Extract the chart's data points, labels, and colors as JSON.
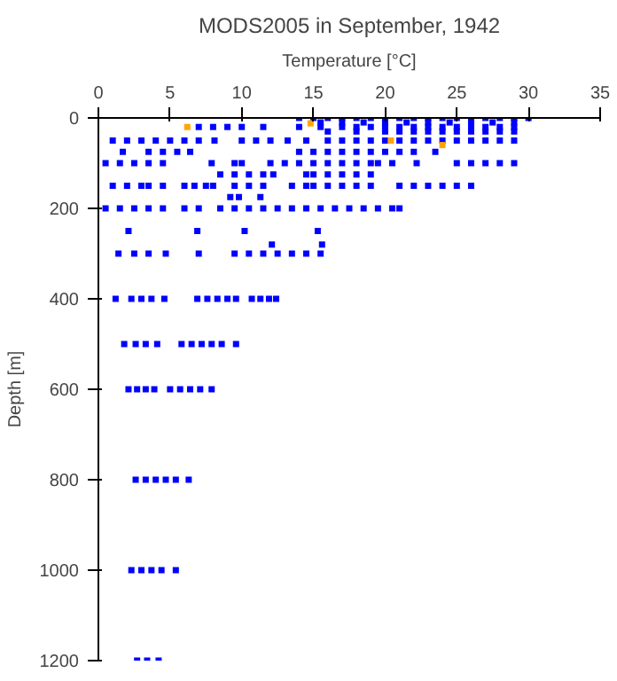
{
  "chart_data": {
    "type": "scatter",
    "title": "MODS2005 in September, 1942",
    "xlabel": "Temperature [°C]",
    "ylabel": "Depth [m]",
    "xlim": [
      0,
      35
    ],
    "xticks": [
      0,
      5,
      10,
      15,
      20,
      25,
      30,
      35
    ],
    "ylim": [
      1200,
      0
    ],
    "yticks": [
      0,
      200,
      400,
      600,
      800,
      1000,
      1200
    ],
    "grid": false,
    "marker": "square",
    "series": [
      {
        "color": "#0000ff",
        "x": [
          14,
          15,
          16,
          17,
          18,
          19,
          20,
          21,
          22,
          23,
          24,
          25,
          26,
          27,
          28,
          29,
          30,
          15.5,
          17,
          18.5,
          20,
          21.5,
          23,
          24.5,
          26,
          27.5,
          29,
          7,
          8,
          9,
          10,
          11.5,
          14,
          15.5,
          17,
          18,
          19,
          20,
          21,
          22,
          23,
          24,
          25,
          26,
          27,
          28,
          29,
          16,
          18,
          20,
          21,
          22,
          23,
          24,
          25,
          26,
          27,
          28,
          29,
          1,
          2,
          3,
          4,
          5,
          6,
          7,
          8.1,
          10,
          11,
          12,
          13.2,
          14.5,
          16,
          17,
          18,
          19,
          20,
          21,
          22,
          23,
          24,
          25,
          26,
          27,
          28,
          29,
          1.7,
          3.5,
          4.5,
          5.5,
          6.4,
          14,
          15,
          16,
          17,
          18,
          19,
          20,
          21,
          22,
          23.5,
          0.5,
          1.5,
          2.5,
          3.5,
          4.5,
          7.9,
          9.5,
          10,
          12,
          13,
          14,
          15,
          16,
          17,
          18,
          19,
          19.5,
          20.5,
          22.2,
          25,
          26,
          27,
          28,
          29,
          8.5,
          9.5,
          10.5,
          11.5,
          12.2,
          14.5,
          15,
          16,
          17,
          18,
          19,
          1,
          2,
          3,
          3.5,
          4.5,
          6,
          6.7,
          7.5,
          8,
          9.5,
          10.5,
          11.5,
          13.5,
          14.5,
          15,
          16,
          17,
          18,
          19,
          21,
          22,
          23,
          24,
          25,
          26,
          9.2,
          9.8,
          11.3,
          0.5,
          1.5,
          2.5,
          3.5,
          4.5,
          6,
          7,
          8.5,
          9.5,
          10.5,
          11.5,
          12.5,
          13.5,
          14.5,
          15.5,
          16.5,
          17.5,
          18.5,
          19.5,
          20.5,
          21,
          2.1,
          6.9,
          10.2,
          15.3,
          12.1,
          15.6,
          1.4,
          2.5,
          3.5,
          4.7,
          7,
          9.5,
          10.5,
          11.5,
          12.5,
          13.5,
          14.5,
          15.5,
          1.2,
          2.3,
          3,
          3.7,
          4.6,
          6.9,
          7.6,
          8.3,
          9,
          9.6,
          10.7,
          11.3,
          11.9,
          12.4,
          1.8,
          2.6,
          3.3,
          4.1,
          5.8,
          6.5,
          7.2,
          7.9,
          8.6,
          9.6,
          2.1,
          2.7,
          3.3,
          3.9,
          5,
          5.7,
          6.4,
          7.1,
          7.9,
          2.6,
          3.3,
          4,
          4.7,
          5.4,
          6.3,
          2.3,
          3,
          3.7,
          4.4,
          5.4,
          2.7,
          3.4,
          4.2
        ],
        "values": [
          0,
          0,
          0,
          0,
          0,
          0,
          0,
          0,
          0,
          0,
          0,
          0,
          0,
          0,
          0,
          0,
          0,
          10,
          10,
          10,
          10,
          10,
          10,
          10,
          10,
          10,
          10,
          20,
          20,
          20,
          20,
          20,
          20,
          20,
          20,
          20,
          20,
          20,
          20,
          20,
          20,
          20,
          20,
          20,
          20,
          20,
          20,
          30,
          30,
          30,
          30,
          30,
          30,
          30,
          30,
          30,
          30,
          30,
          30,
          50,
          50,
          50,
          50,
          50,
          50,
          50,
          50,
          50,
          50,
          50,
          50,
          50,
          50,
          50,
          50,
          50,
          50,
          50,
          50,
          50,
          50,
          50,
          50,
          50,
          50,
          50,
          75,
          75,
          75,
          75,
          75,
          75,
          75,
          75,
          75,
          75,
          75,
          75,
          75,
          75,
          75,
          100,
          100,
          100,
          100,
          100,
          100,
          100,
          100,
          100,
          100,
          100,
          100,
          100,
          100,
          100,
          100,
          100,
          100,
          100,
          100,
          100,
          100,
          100,
          100,
          125,
          125,
          125,
          125,
          125,
          125,
          125,
          125,
          125,
          125,
          125,
          150,
          150,
          150,
          150,
          150,
          150,
          150,
          150,
          150,
          150,
          150,
          150,
          150,
          150,
          150,
          150,
          150,
          150,
          150,
          150,
          150,
          150,
          150,
          150,
          150,
          175,
          175,
          175,
          200,
          200,
          200,
          200,
          200,
          200,
          200,
          200,
          200,
          200,
          200,
          200,
          200,
          200,
          200,
          200,
          200,
          200,
          200,
          200,
          200,
          250,
          250,
          250,
          250,
          280,
          280,
          300,
          300,
          300,
          300,
          300,
          300,
          300,
          300,
          300,
          300,
          300,
          300,
          400,
          400,
          400,
          400,
          400,
          400,
          400,
          400,
          400,
          400,
          400,
          400,
          400,
          400,
          500,
          500,
          500,
          500,
          500,
          500,
          500,
          500,
          500,
          500,
          600,
          600,
          600,
          600,
          600,
          600,
          600,
          600,
          600,
          800,
          800,
          800,
          800,
          800,
          800,
          1000,
          1000,
          1000,
          1000,
          1000,
          1200,
          1200,
          1200
        ]
      },
      {
        "color": "#ffa500",
        "x": [
          6.2,
          14.8,
          20.4,
          24
        ],
        "values": [
          20,
          12,
          50,
          60
        ]
      }
    ]
  }
}
